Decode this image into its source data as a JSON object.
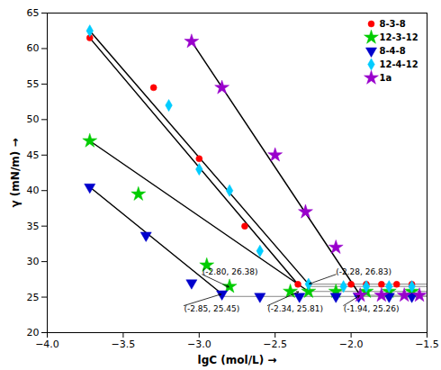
{
  "chart_data": {
    "type": "scatter",
    "xlabel": "lgC (mol/L)",
    "ylabel": "γ (mN/m)",
    "xlim": [
      -4.0,
      -1.5
    ],
    "ylim": [
      20,
      65
    ],
    "xticks": [
      {
        "value": -4.0,
        "label": "−4.0"
      },
      {
        "value": -3.5,
        "label": "−3.5"
      },
      {
        "value": -3.0,
        "label": "−3.0"
      },
      {
        "value": -2.5,
        "label": "−2.5"
      },
      {
        "value": -2.0,
        "label": "−2.0"
      },
      {
        "value": -1.5,
        "label": "−1.5"
      }
    ],
    "yticks": [
      20,
      25,
      30,
      35,
      40,
      45,
      50,
      55,
      60,
      65
    ],
    "legend": "upper right",
    "series": [
      {
        "name": "8-3-8",
        "color": "#FF0000",
        "marker": "circle",
        "x": [
          -3.72,
          -3.3,
          -3.0,
          -2.7,
          -2.35,
          -2.0,
          -1.9,
          -1.8,
          -1.7,
          -1.6
        ],
        "values": [
          61.5,
          54.5,
          44.5,
          35.0,
          26.8,
          26.8,
          26.8,
          26.8,
          26.8,
          26.8
        ],
        "fit": {
          "x": [
            -3.72,
            -2.35
          ],
          "y": [
            61.5,
            26.8
          ],
          "color": "black"
        }
      },
      {
        "name": "12-3-12",
        "color": "#00CC00",
        "marker": "star",
        "x": [
          -3.72,
          -3.4,
          -2.95,
          -2.8,
          -2.4,
          -2.28,
          -2.1,
          -1.9,
          -1.75,
          -1.6
        ],
        "values": [
          47.0,
          39.5,
          29.5,
          26.5,
          25.8,
          25.8,
          25.8,
          25.8,
          25.8,
          25.8
        ],
        "fit": {
          "x": [
            -3.72,
            -2.28
          ],
          "y": [
            47.0,
            25.8
          ],
          "color": "black"
        }
      },
      {
        "name": "8-4-8",
        "color": "#0000CC",
        "marker": "triangle_down",
        "x": [
          -3.72,
          -3.35,
          -3.05,
          -2.85,
          -2.6,
          -2.34,
          -2.1,
          -1.95,
          -1.75,
          -1.6
        ],
        "values": [
          40.5,
          33.7,
          27.0,
          25.45,
          25.1,
          25.1,
          25.1,
          25.1,
          25.1,
          25.1
        ],
        "fit": {
          "x": [
            -3.72,
            -2.85
          ],
          "y": [
            40.5,
            25.45
          ],
          "color": "black"
        }
      },
      {
        "name": "12-4-12",
        "color": "#00CCFF",
        "marker": "diamond",
        "x": [
          -3.72,
          -3.2,
          -3.0,
          -2.8,
          -2.6,
          -2.28,
          -2.05,
          -1.9,
          -1.75,
          -1.6
        ],
        "values": [
          62.5,
          52.0,
          43.0,
          40.0,
          31.5,
          26.83,
          26.5,
          26.5,
          26.5,
          26.5
        ],
        "fit": {
          "x": [
            -3.72,
            -2.28
          ],
          "y": [
            62.5,
            26.83
          ],
          "color": "black"
        }
      },
      {
        "name": "1a",
        "color": "#9900CC",
        "marker": "star",
        "x": [
          -3.05,
          -2.85,
          -2.5,
          -2.3,
          -2.1,
          -1.94,
          -1.8,
          -1.65,
          -1.55
        ],
        "values": [
          61.0,
          54.5,
          45.0,
          37.0,
          32.0,
          25.26,
          25.26,
          25.26,
          25.26
        ],
        "fit": {
          "x": [
            -3.05,
            -1.94
          ],
          "y": [
            61.0,
            25.26
          ],
          "color": "black"
        }
      }
    ],
    "plateau_lines": [
      {
        "y": 25.1,
        "x0": -2.85,
        "x1": -1.5
      },
      {
        "y": 25.26,
        "x0": -1.94,
        "x1": -1.5
      },
      {
        "y": 25.8,
        "x0": -2.28,
        "x1": -1.5
      },
      {
        "y": 26.5,
        "x0": -2.28,
        "x1": -1.5
      },
      {
        "y": 26.83,
        "x0": -2.28,
        "x1": -1.5
      }
    ],
    "plateau_color": "#888888",
    "annotations": [
      {
        "text": "(-2.85, 25.45)",
        "xy": [
          -2.85,
          25.45
        ],
        "xytext": [
          -3.1,
          23.8
        ]
      },
      {
        "text": "(-2.80, 26.38)",
        "xy": [
          -2.8,
          26.38
        ],
        "xytext": [
          -2.98,
          28.2
        ]
      },
      {
        "text": "(-2.34, 25.81)",
        "xy": [
          -2.34,
          25.81
        ],
        "xytext": [
          -2.55,
          23.8
        ]
      },
      {
        "text": "(-2.28, 26.83)",
        "xy": [
          -2.28,
          26.83
        ],
        "xytext": [
          -2.1,
          28.2
        ]
      },
      {
        "text": "(-1.94, 25.26)",
        "xy": [
          -1.94,
          25.26
        ],
        "xytext": [
          -2.05,
          23.8
        ]
      }
    ]
  }
}
